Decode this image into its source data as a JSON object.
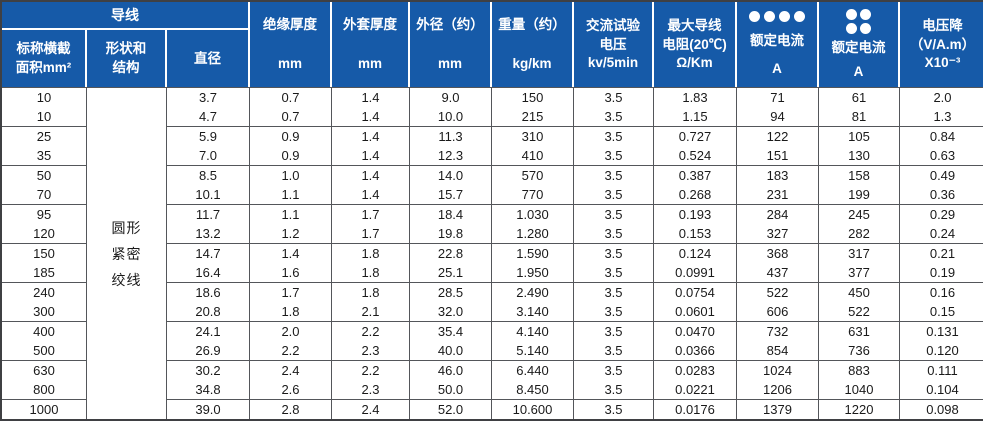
{
  "colors": {
    "header_bg": "#165AA8",
    "header_text": "#FFFFFF",
    "grid_line": "#54565A",
    "body_text": "#1A1A1A"
  },
  "table": {
    "header": {
      "group_conductor": "导线",
      "nominal": [
        "标称横截",
        "面积mm²"
      ],
      "shape": [
        "形状和",
        "结构"
      ],
      "diameter": "直径",
      "insulation": [
        "绝缘厚度",
        "mm"
      ],
      "sheath": [
        "外套厚度",
        "mm"
      ],
      "outer_d": [
        "外径（约）",
        "mm"
      ],
      "weight": [
        "重量（约）",
        "kg/km"
      ],
      "ac_test": [
        "交流试验",
        "电压",
        "kv/5min"
      ],
      "resistance": [
        "最大导线",
        "电阻(20℃)",
        "Ω/Km"
      ],
      "current4": [
        "额定电流",
        "A"
      ],
      "current22": [
        "额定电流",
        "A"
      ],
      "vdrop": [
        "电压降",
        "（V/A.m）",
        "X10⁻³"
      ]
    },
    "shape_cell": [
      "圆形",
      "紧密",
      "绞线"
    ],
    "rows": [
      [
        "10",
        "3.7",
        "0.7",
        "1.4",
        "9.0",
        "150",
        "3.5",
        "1.83",
        "71",
        "61",
        "2.0"
      ],
      [
        "10",
        "4.7",
        "0.7",
        "1.4",
        "10.0",
        "215",
        "3.5",
        "1.15",
        "94",
        "81",
        "1.3"
      ],
      [
        "25",
        "5.9",
        "0.9",
        "1.4",
        "11.3",
        "310",
        "3.5",
        "0.727",
        "122",
        "105",
        "0.84"
      ],
      [
        "35",
        "7.0",
        "0.9",
        "1.4",
        "12.3",
        "410",
        "3.5",
        "0.524",
        "151",
        "130",
        "0.63"
      ],
      [
        "50",
        "8.5",
        "1.0",
        "1.4",
        "14.0",
        "570",
        "3.5",
        "0.387",
        "183",
        "158",
        "0.49"
      ],
      [
        "70",
        "10.1",
        "1.1",
        "1.4",
        "15.7",
        "770",
        "3.5",
        "0.268",
        "231",
        "199",
        "0.36"
      ],
      [
        "95",
        "11.7",
        "1.1",
        "1.7",
        "18.4",
        "1.030",
        "3.5",
        "0.193",
        "284",
        "245",
        "0.29"
      ],
      [
        "120",
        "13.2",
        "1.2",
        "1.7",
        "19.8",
        "1.280",
        "3.5",
        "0.153",
        "327",
        "282",
        "0.24"
      ],
      [
        "150",
        "14.7",
        "1.4",
        "1.8",
        "22.8",
        "1.590",
        "3.5",
        "0.124",
        "368",
        "317",
        "0.21"
      ],
      [
        "185",
        "16.4",
        "1.6",
        "1.8",
        "25.1",
        "1.950",
        "3.5",
        "0.0991",
        "437",
        "377",
        "0.19"
      ],
      [
        "240",
        "18.6",
        "1.7",
        "1.8",
        "28.5",
        "2.490",
        "3.5",
        "0.0754",
        "522",
        "450",
        "0.16"
      ],
      [
        "300",
        "20.8",
        "1.8",
        "2.1",
        "32.0",
        "3.140",
        "3.5",
        "0.0601",
        "606",
        "522",
        "0.15"
      ],
      [
        "400",
        "24.1",
        "2.0",
        "2.2",
        "35.4",
        "4.140",
        "3.5",
        "0.0470",
        "732",
        "631",
        "0.131"
      ],
      [
        "500",
        "26.9",
        "2.2",
        "2.3",
        "40.0",
        "5.140",
        "3.5",
        "0.0366",
        "854",
        "736",
        "0.120"
      ],
      [
        "630",
        "30.2",
        "2.4",
        "2.2",
        "46.0",
        "6.440",
        "3.5",
        "0.0283",
        "1024",
        "883",
        "0.111"
      ],
      [
        "800",
        "34.8",
        "2.6",
        "2.3",
        "50.0",
        "8.450",
        "3.5",
        "0.0221",
        "1206",
        "1040",
        "0.104"
      ],
      [
        "1000",
        "39.0",
        "2.8",
        "2.4",
        "52.0",
        "10.600",
        "3.5",
        "0.0176",
        "1379",
        "1220",
        "0.098"
      ]
    ]
  }
}
